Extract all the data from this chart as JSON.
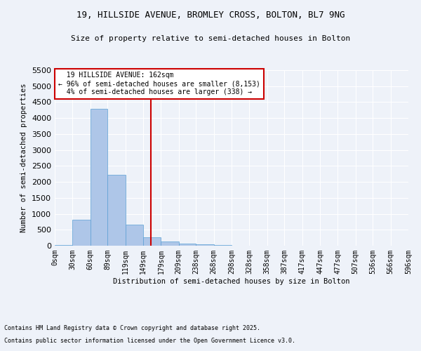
{
  "title1": "19, HILLSIDE AVENUE, BROMLEY CROSS, BOLTON, BL7 9NG",
  "title2": "Size of property relative to semi-detached houses in Bolton",
  "xlabel": "Distribution of semi-detached houses by size in Bolton",
  "ylabel": "Number of semi-detached properties",
  "bar_values": [
    30,
    820,
    4300,
    2230,
    670,
    265,
    130,
    75,
    50,
    30,
    10,
    5,
    3,
    2,
    1,
    1,
    1,
    0,
    0,
    0
  ],
  "bin_edges": [
    0,
    30,
    60,
    89,
    119,
    149,
    179,
    209,
    238,
    268,
    298,
    328,
    358,
    387,
    417,
    447,
    477,
    507,
    536,
    566,
    596
  ],
  "tick_labels": [
    "0sqm",
    "30sqm",
    "60sqm",
    "89sqm",
    "119sqm",
    "149sqm",
    "179sqm",
    "209sqm",
    "238sqm",
    "268sqm",
    "298sqm",
    "328sqm",
    "358sqm",
    "387sqm",
    "417sqm",
    "447sqm",
    "477sqm",
    "507sqm",
    "536sqm",
    "566sqm",
    "596sqm"
  ],
  "property_size": 162,
  "property_label": "19 HILLSIDE AVENUE: 162sqm",
  "pct_smaller": 96,
  "n_smaller": 8153,
  "pct_larger": 4,
  "n_larger": 338,
  "bar_color": "#aec6e8",
  "bar_edge_color": "#5a9fd4",
  "vline_color": "#cc0000",
  "annotation_box_color": "#cc0000",
  "bg_color": "#eef2f9",
  "grid_color": "#ffffff",
  "ylim": [
    0,
    5500
  ],
  "yticks": [
    0,
    500,
    1000,
    1500,
    2000,
    2500,
    3000,
    3500,
    4000,
    4500,
    5000,
    5500
  ],
  "footer1": "Contains HM Land Registry data © Crown copyright and database right 2025.",
  "footer2": "Contains public sector information licensed under the Open Government Licence v3.0."
}
